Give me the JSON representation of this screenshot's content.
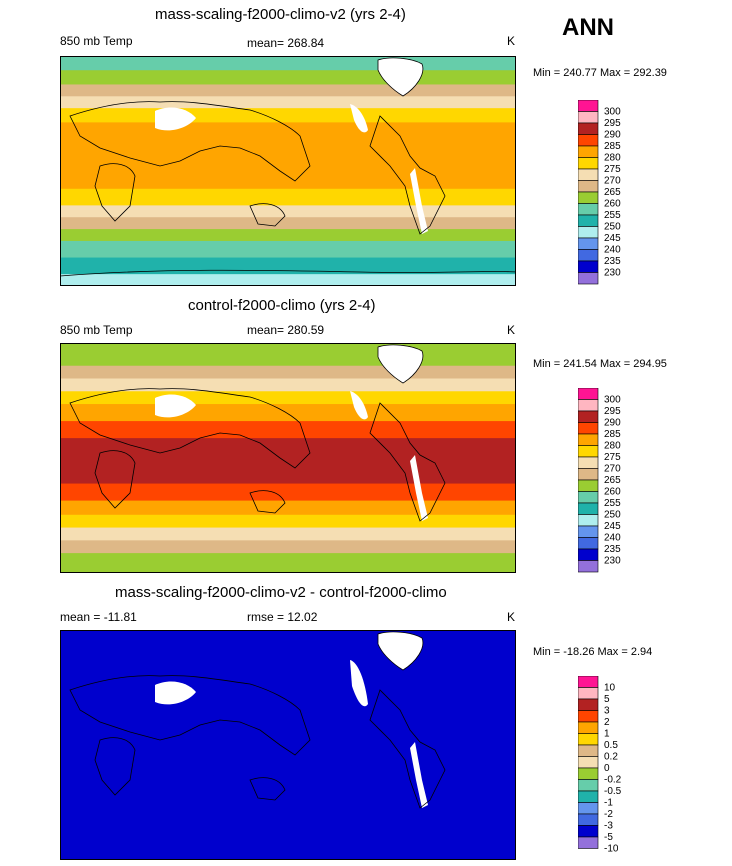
{
  "page_label": "ANN",
  "palette_temp": [
    "#9370db",
    "#0000cd",
    "#4169e1",
    "#6495ed",
    "#afeeee",
    "#20b2aa",
    "#66cdaa",
    "#9acd32",
    "#deb887",
    "#f5deb3",
    "#ffd700",
    "#ffa500",
    "#ff4500",
    "#b22222",
    "#ffb6c1",
    "#ff1493"
  ],
  "palette_diff": [
    "#9370db",
    "#0000cd",
    "#4169e1",
    "#6495ed",
    "#20b2aa",
    "#66cdaa",
    "#9acd32",
    "#f5deb3",
    "#deb887",
    "#ffd700",
    "#ffa500",
    "#ff4500",
    "#b22222",
    "#ffb6c1",
    "#ff1493"
  ],
  "land_white": "#ffffff",
  "panels": [
    {
      "title": "mass-scaling-f2000-climo-v2 (yrs 2-4)",
      "left_label": "850 mb Temp",
      "mid_label": "mean= 268.84",
      "units": "K",
      "minmax": "Min = 240.77 Max = 292.39",
      "colorbar_ticks": [
        "300",
        "295",
        "290",
        "285",
        "280",
        "275",
        "270",
        "265",
        "260",
        "255",
        "250",
        "245",
        "240",
        "235",
        "230"
      ]
    },
    {
      "title": "control-f2000-climo (yrs 2-4)",
      "left_label": "850 mb Temp",
      "mid_label": "mean= 280.59",
      "units": "K",
      "minmax": "Min = 241.54 Max = 294.95",
      "colorbar_ticks": [
        "300",
        "295",
        "290",
        "285",
        "280",
        "275",
        "270",
        "265",
        "260",
        "255",
        "250",
        "245",
        "240",
        "235",
        "230"
      ]
    },
    {
      "title": "mass-scaling-f2000-climo-v2 - control-f2000-climo",
      "left_label": "mean = -11.81",
      "mid_label": "rmse =  12.02",
      "units": "K",
      "minmax": "Min = -18.26 Max =   2.94",
      "colorbar_ticks": [
        "10",
        "5",
        "3",
        "2",
        "1",
        "0.5",
        "0.2",
        "0",
        "-0.2",
        "-0.5",
        "-1",
        "-2",
        "-3",
        "-5",
        "-10"
      ]
    }
  ],
  "chart_data": [
    {
      "type": "heatmap",
      "title": "mass-scaling-f2000-climo-v2 (yrs 2-4)",
      "variable": "850 mb Temp",
      "units": "K",
      "mean": 268.84,
      "min": 240.77,
      "max": 292.39,
      "colorbar_levels": [
        230,
        235,
        240,
        245,
        250,
        255,
        260,
        265,
        270,
        275,
        280,
        285,
        290,
        295,
        300
      ],
      "zonal_bands_from_north": [
        {
          "level": 255,
          "weight": 1.2
        },
        {
          "level": 260,
          "weight": 1.2
        },
        {
          "level": 265,
          "weight": 1.0
        },
        {
          "level": 270,
          "weight": 1.0
        },
        {
          "level": 275,
          "weight": 1.2
        },
        {
          "level": 280,
          "weight": 5.6
        },
        {
          "level": 275,
          "weight": 1.4
        },
        {
          "level": 270,
          "weight": 1.0
        },
        {
          "level": 265,
          "weight": 1.0
        },
        {
          "level": 260,
          "weight": 1.0
        },
        {
          "level": 255,
          "weight": 1.4
        },
        {
          "level": 250,
          "weight": 1.4
        },
        {
          "level": 245,
          "weight": 1.0
        }
      ]
    },
    {
      "type": "heatmap",
      "title": "control-f2000-climo (yrs 2-4)",
      "variable": "850 mb Temp",
      "units": "K",
      "mean": 280.59,
      "min": 241.54,
      "max": 294.95,
      "colorbar_levels": [
        230,
        235,
        240,
        245,
        250,
        255,
        260,
        265,
        270,
        275,
        280,
        285,
        290,
        295,
        300
      ],
      "zonal_bands_from_north": [
        {
          "level": 260,
          "weight": 1.6
        },
        {
          "level": 265,
          "weight": 0.9
        },
        {
          "level": 270,
          "weight": 0.9
        },
        {
          "level": 275,
          "weight": 0.9
        },
        {
          "level": 280,
          "weight": 1.2
        },
        {
          "level": 285,
          "weight": 1.2
        },
        {
          "level": 290,
          "weight": 3.2
        },
        {
          "level": 285,
          "weight": 1.2
        },
        {
          "level": 280,
          "weight": 1.0
        },
        {
          "level": 275,
          "weight": 0.9
        },
        {
          "level": 270,
          "weight": 0.9
        },
        {
          "level": 265,
          "weight": 0.9
        },
        {
          "level": 260,
          "weight": 1.4
        }
      ]
    },
    {
      "type": "heatmap",
      "title": "mass-scaling-f2000-climo-v2 - control-f2000-climo",
      "units": "K",
      "mean": -11.81,
      "rmse": 12.02,
      "min": -18.26,
      "max": 2.94,
      "colorbar_levels": [
        -10,
        -5,
        -3,
        -2,
        -1,
        -0.5,
        -0.2,
        0,
        0.2,
        0.5,
        1,
        2,
        3,
        5,
        10
      ],
      "zonal_bands_from_north": [
        {
          "level": -10,
          "weight": 1.0
        }
      ]
    }
  ]
}
